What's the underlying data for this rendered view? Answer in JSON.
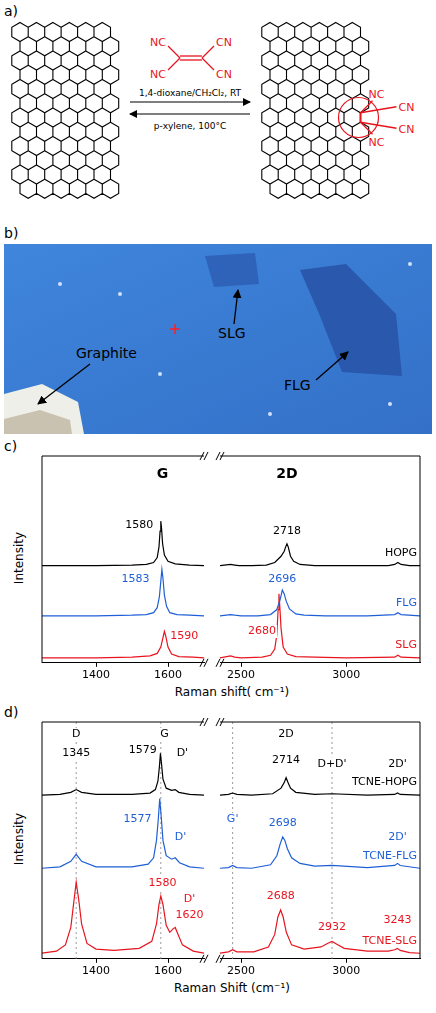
{
  "diagram": {
    "panel_label": "a)",
    "reactant_groups": [
      "NC",
      "CN",
      "NC",
      "CN"
    ],
    "forward_conditions": "1,4-dioxane/CH₂Cl₂, RT",
    "reverse_conditions": "p-xylene, 100°C",
    "product_groups": [
      "NC",
      "CN",
      "NC",
      "CN"
    ]
  },
  "image": {
    "panel_label": "b)",
    "labels": [
      "Graphite",
      "SLG",
      "FLG"
    ]
  },
  "chart_data": [
    {
      "panel_label": "c)",
      "type": "line",
      "x_label": "Raman shift( cm⁻¹)",
      "y_label": "Intensity",
      "segments": [
        {
          "xlim": [
            1250,
            1700
          ],
          "xticks": [
            1400,
            1600
          ]
        },
        {
          "xlim": [
            2400,
            3350
          ],
          "xticks": [
            2500,
            3000
          ]
        }
      ],
      "ylim": [
        0,
        3.3
      ],
      "tick_labels": "x",
      "grid": false,
      "headers": [
        {
          "text": "G",
          "x": 1585,
          "y": 3.0
        },
        {
          "text": "2D",
          "x": 2718,
          "y": 3.0
        }
      ],
      "annotations": [
        {
          "text": "1580",
          "x": 1520,
          "y": 2.2,
          "color": "#000000"
        },
        {
          "text": "2718",
          "x": 2718,
          "y": 2.1,
          "color": "#000000"
        },
        {
          "text": "1583",
          "x": 1510,
          "y": 1.33,
          "color": "#1f5fd6"
        },
        {
          "text": "2696",
          "x": 2696,
          "y": 1.33,
          "color": "#1f5fd6"
        },
        {
          "text": "1590",
          "x": 1645,
          "y": 0.42,
          "color": "#e8141e"
        },
        {
          "text": "2680",
          "x": 2600,
          "y": 0.5,
          "color": "#e8141e"
        }
      ],
      "series": [
        {
          "name": "HOPG",
          "color": "#000000",
          "x": [
            1250,
            1400,
            1500,
            1540,
            1560,
            1570,
            1575,
            1578,
            1580,
            1582,
            1585,
            1590,
            1600,
            1620,
            1660,
            1700,
            2400,
            2450,
            2470,
            2490,
            2550,
            2620,
            2660,
            2690,
            2705,
            2712,
            2718,
            2724,
            2735,
            2750,
            2780,
            2850,
            3000,
            3200,
            3230,
            3245,
            3260,
            3300,
            3350
          ],
          "values": [
            1.55,
            1.55,
            1.56,
            1.57,
            1.6,
            1.68,
            1.85,
            2.1,
            2.26,
            2.15,
            1.9,
            1.72,
            1.62,
            1.58,
            1.56,
            1.55,
            1.55,
            1.57,
            1.56,
            1.55,
            1.55,
            1.56,
            1.6,
            1.7,
            1.78,
            1.85,
            1.9,
            1.85,
            1.7,
            1.62,
            1.57,
            1.55,
            1.55,
            1.55,
            1.57,
            1.6,
            1.57,
            1.55,
            1.55
          ]
        },
        {
          "name": "FLG",
          "color": "#1f5fd6",
          "x": [
            1250,
            1400,
            1500,
            1540,
            1560,
            1570,
            1576,
            1580,
            1583,
            1586,
            1590,
            1596,
            1605,
            1625,
            1660,
            1700,
            2400,
            2450,
            2470,
            2500,
            2580,
            2640,
            2670,
            2685,
            2696,
            2705,
            2715,
            2730,
            2760,
            2800,
            2900,
            3100,
            3230,
            3245,
            3260,
            3350
          ],
          "values": [
            0.75,
            0.75,
            0.76,
            0.77,
            0.8,
            0.88,
            1.05,
            1.3,
            1.49,
            1.35,
            1.08,
            0.9,
            0.8,
            0.77,
            0.76,
            0.75,
            0.75,
            0.77,
            0.76,
            0.75,
            0.75,
            0.77,
            0.85,
            1.0,
            1.16,
            1.1,
            0.98,
            0.86,
            0.78,
            0.76,
            0.75,
            0.75,
            0.77,
            0.8,
            0.77,
            0.75
          ]
        },
        {
          "name": "SLG",
          "color": "#e8141e",
          "x": [
            1250,
            1400,
            1500,
            1550,
            1570,
            1580,
            1586,
            1590,
            1594,
            1600,
            1610,
            1630,
            1670,
            1700,
            2400,
            2450,
            2470,
            2500,
            2600,
            2640,
            2660,
            2670,
            2676,
            2680,
            2684,
            2690,
            2700,
            2720,
            2760,
            2850,
            3000,
            3230,
            3245,
            3260,
            3350
          ],
          "values": [
            0.08,
            0.08,
            0.09,
            0.11,
            0.15,
            0.25,
            0.4,
            0.5,
            0.42,
            0.25,
            0.14,
            0.1,
            0.09,
            0.08,
            0.08,
            0.11,
            0.09,
            0.08,
            0.09,
            0.12,
            0.22,
            0.45,
            0.85,
            1.1,
            0.9,
            0.55,
            0.25,
            0.14,
            0.1,
            0.09,
            0.08,
            0.09,
            0.12,
            0.09,
            0.08
          ]
        }
      ]
    },
    {
      "panel_label": "d)",
      "type": "line",
      "x_label": "Raman Shift (cm⁻¹)",
      "y_label": "Intensity",
      "segments": [
        {
          "xlim": [
            1250,
            1700
          ],
          "xticks": [
            1400,
            1600
          ]
        },
        {
          "xlim": [
            2400,
            3350
          ],
          "xticks": [
            2500,
            3000
          ]
        }
      ],
      "ylim": [
        0,
        3.4
      ],
      "tick_labels": "x",
      "grid": false,
      "vlines": [
        1345,
        1580,
        2460,
        2932
      ],
      "annotations": [
        {
          "text": "D",
          "x": 1345,
          "y": 3.22,
          "color": "#000000"
        },
        {
          "text": "1345",
          "x": 1345,
          "y": 2.95,
          "color": "#000000"
        },
        {
          "text": "G",
          "x": 1590,
          "y": 3.22,
          "color": "#000000"
        },
        {
          "text": "1579",
          "x": 1530,
          "y": 3.0,
          "color": "#000000"
        },
        {
          "text": "D'",
          "x": 1640,
          "y": 2.95,
          "color": "#000000"
        },
        {
          "text": "2D",
          "x": 2714,
          "y": 3.22,
          "color": "#000000"
        },
        {
          "text": "2714",
          "x": 2714,
          "y": 2.85,
          "color": "#000000"
        },
        {
          "text": "D+D'",
          "x": 2932,
          "y": 2.8,
          "color": "#000000"
        },
        {
          "text": "2D'",
          "x": 3243,
          "y": 2.8,
          "color": "#000000"
        },
        {
          "text": "1577",
          "x": 1515,
          "y": 2.0,
          "color": "#1f5fd6"
        },
        {
          "text": "D'",
          "x": 1635,
          "y": 1.75,
          "color": "#1f5fd6"
        },
        {
          "text": "G'",
          "x": 2460,
          "y": 2.0,
          "color": "#1f5fd6"
        },
        {
          "text": "2698",
          "x": 2698,
          "y": 1.95,
          "color": "#1f5fd6"
        },
        {
          "text": "2D'",
          "x": 3243,
          "y": 1.75,
          "color": "#1f5fd6"
        },
        {
          "text": "1580",
          "x": 1585,
          "y": 1.08,
          "color": "#e8141e"
        },
        {
          "text": "D'",
          "x": 1660,
          "y": 0.85,
          "color": "#e8141e"
        },
        {
          "text": "1620",
          "x": 1660,
          "y": 0.62,
          "color": "#e8141e"
        },
        {
          "text": "2688",
          "x": 2688,
          "y": 0.9,
          "color": "#e8141e"
        },
        {
          "text": "2932",
          "x": 2932,
          "y": 0.45,
          "color": "#e8141e"
        },
        {
          "text": "3243",
          "x": 3243,
          "y": 0.55,
          "color": "#e8141e"
        }
      ],
      "series": [
        {
          "name": "TCNE-HOPG",
          "color": "#000000",
          "x": [
            1250,
            1300,
            1330,
            1345,
            1360,
            1400,
            1500,
            1550,
            1565,
            1572,
            1576,
            1579,
            1582,
            1586,
            1595,
            1610,
            1620,
            1630,
            1660,
            1700,
            2400,
            2440,
            2460,
            2480,
            2550,
            2650,
            2690,
            2705,
            2714,
            2722,
            2735,
            2760,
            2850,
            2932,
            3100,
            3230,
            3243,
            3256,
            3350
          ],
          "values": [
            2.35,
            2.36,
            2.39,
            2.43,
            2.39,
            2.36,
            2.36,
            2.38,
            2.43,
            2.55,
            2.75,
            2.95,
            2.8,
            2.58,
            2.45,
            2.42,
            2.43,
            2.39,
            2.36,
            2.35,
            2.35,
            2.36,
            2.38,
            2.36,
            2.35,
            2.37,
            2.45,
            2.53,
            2.6,
            2.54,
            2.45,
            2.39,
            2.36,
            2.37,
            2.35,
            2.36,
            2.38,
            2.36,
            2.35
          ]
        },
        {
          "name": "TCNE-FLG",
          "color": "#1f5fd6",
          "x": [
            1250,
            1300,
            1330,
            1345,
            1360,
            1400,
            1500,
            1545,
            1560,
            1568,
            1573,
            1577,
            1581,
            1586,
            1595,
            1610,
            1620,
            1632,
            1660,
            1700,
            2400,
            2440,
            2460,
            2480,
            2550,
            2640,
            2670,
            2686,
            2698,
            2708,
            2720,
            2740,
            2780,
            2850,
            2932,
            3100,
            3230,
            3243,
            3256,
            3350
          ],
          "values": [
            1.3,
            1.32,
            1.4,
            1.5,
            1.4,
            1.32,
            1.32,
            1.36,
            1.45,
            1.7,
            2.0,
            2.3,
            2.05,
            1.7,
            1.48,
            1.43,
            1.45,
            1.38,
            1.32,
            1.3,
            1.3,
            1.31,
            1.34,
            1.31,
            1.3,
            1.35,
            1.48,
            1.65,
            1.75,
            1.7,
            1.58,
            1.45,
            1.37,
            1.33,
            1.34,
            1.31,
            1.34,
            1.37,
            1.34,
            1.3
          ]
        },
        {
          "name": "TCNE-SLG",
          "color": "#e8141e",
          "x": [
            1250,
            1290,
            1315,
            1330,
            1338,
            1345,
            1352,
            1360,
            1375,
            1400,
            1450,
            1520,
            1555,
            1568,
            1575,
            1580,
            1586,
            1595,
            1605,
            1614,
            1620,
            1628,
            1640,
            1670,
            1700,
            2400,
            2440,
            2460,
            2480,
            2560,
            2630,
            2660,
            2675,
            2688,
            2700,
            2715,
            2740,
            2800,
            2880,
            2910,
            2932,
            2955,
            2990,
            3100,
            3200,
            3230,
            3243,
            3256,
            3300,
            3350
          ],
          "values": [
            0.08,
            0.11,
            0.2,
            0.45,
            0.8,
            1.1,
            0.85,
            0.5,
            0.22,
            0.14,
            0.12,
            0.15,
            0.25,
            0.5,
            0.78,
            0.9,
            0.78,
            0.48,
            0.38,
            0.43,
            0.45,
            0.35,
            0.2,
            0.11,
            0.08,
            0.08,
            0.1,
            0.13,
            0.1,
            0.1,
            0.17,
            0.35,
            0.6,
            0.7,
            0.6,
            0.38,
            0.2,
            0.14,
            0.17,
            0.22,
            0.25,
            0.21,
            0.15,
            0.11,
            0.11,
            0.13,
            0.15,
            0.12,
            0.09,
            0.08
          ]
        }
      ]
    }
  ]
}
